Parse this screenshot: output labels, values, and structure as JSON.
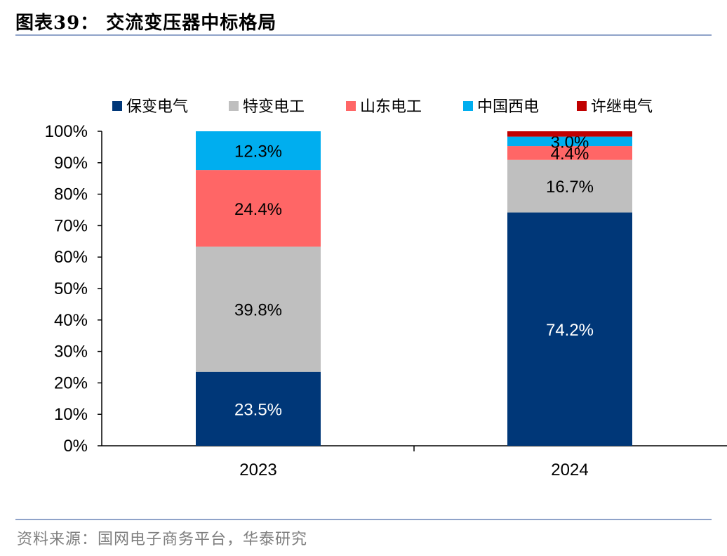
{
  "header": {
    "title": "图表39：  交流变压器中标格局"
  },
  "footer": {
    "source": "资料来源：国网电子商务平台，华泰研究"
  },
  "chart_data": {
    "type": "bar",
    "stacked": true,
    "categories": [
      "2023",
      "2024"
    ],
    "ylim": [
      0,
      100
    ],
    "yticks": [
      "0%",
      "10%",
      "20%",
      "30%",
      "40%",
      "50%",
      "60%",
      "70%",
      "80%",
      "90%",
      "100%"
    ],
    "legend_position": "top",
    "grid": false,
    "series": [
      {
        "name": "保变电气",
        "color": "#003778",
        "values": [
          23.5,
          74.2
        ],
        "labels": [
          "23.5%",
          "74.2%"
        ],
        "label_color": "#ffffff"
      },
      {
        "name": "特变电工",
        "color": "#bfbfbf",
        "values": [
          39.8,
          16.7
        ],
        "labels": [
          "39.8%",
          "16.7%"
        ],
        "label_color": "#000000"
      },
      {
        "name": "山东电工",
        "color": "#ff6666",
        "values": [
          24.4,
          4.4
        ],
        "labels": [
          "24.4%",
          "4.4%"
        ],
        "label_color": "#000000"
      },
      {
        "name": "中国西电",
        "color": "#00aeef",
        "values": [
          12.3,
          3.0
        ],
        "labels": [
          "12.3%",
          "3.0%"
        ],
        "label_color": "#000000"
      },
      {
        "name": "许继电气",
        "color": "#c00000",
        "values": [
          0,
          1.7
        ],
        "labels": [
          "",
          ""
        ],
        "label_color": "#000000"
      }
    ]
  }
}
